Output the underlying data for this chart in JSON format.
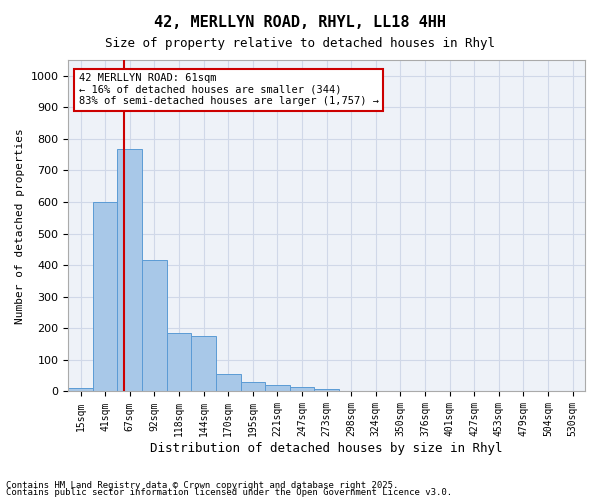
{
  "title1": "42, MERLLYN ROAD, RHYL, LL18 4HH",
  "title2": "Size of property relative to detached houses in Rhyl",
  "xlabel": "Distribution of detached houses by size in Rhyl",
  "ylabel": "Number of detached properties",
  "bar_labels": [
    "15sqm",
    "41sqm",
    "67sqm",
    "92sqm",
    "118sqm",
    "144sqm",
    "170sqm",
    "195sqm",
    "221sqm",
    "247sqm",
    "273sqm",
    "298sqm",
    "324sqm",
    "350sqm",
    "376sqm",
    "401sqm",
    "427sqm",
    "453sqm",
    "479sqm",
    "504sqm",
    "530sqm"
  ],
  "bar_values": [
    10,
    600,
    767,
    415,
    185,
    175,
    55,
    30,
    20,
    15,
    8,
    0,
    0,
    0,
    0,
    0,
    0,
    0,
    0,
    0,
    0
  ],
  "bar_color": "#a8c8e8",
  "bar_edge_color": "#5b9bd5",
  "grid_color": "#d0d8e8",
  "background_color": "#eef2f8",
  "property_line_x": 1.85,
  "property_size": "61sqm",
  "annotation_text": "42 MERLLYN ROAD: 61sqm\n← 16% of detached houses are smaller (344)\n83% of semi-detached houses are larger (1,757) →",
  "annotation_box_color": "#ffffff",
  "annotation_box_edge": "#cc0000",
  "vline_color": "#cc0000",
  "ylim": [
    0,
    1050
  ],
  "yticks": [
    0,
    100,
    200,
    300,
    400,
    500,
    600,
    700,
    800,
    900,
    1000
  ],
  "footer1": "Contains HM Land Registry data © Crown copyright and database right 2025.",
  "footer2": "Contains public sector information licensed under the Open Government Licence v3.0."
}
